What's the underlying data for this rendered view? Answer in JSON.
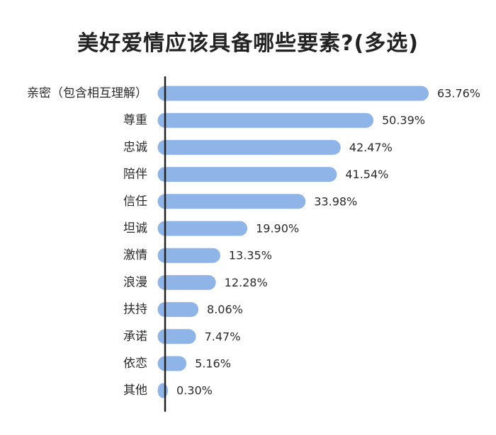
{
  "chart_data": {
    "type": "bar",
    "orientation": "horizontal",
    "title": "美好爱情应该具备哪些要素?(多选)",
    "categories": [
      "亲密（包含相互理解）",
      "尊重",
      "忠诚",
      "陪伴",
      "信任",
      "坦诚",
      "激情",
      "浪漫",
      "扶持",
      "承诺",
      "依恋",
      "其他"
    ],
    "values": [
      63.76,
      50.39,
      42.47,
      41.54,
      33.98,
      19.9,
      13.35,
      12.28,
      8.06,
      7.47,
      5.16,
      0.3
    ],
    "value_labels": [
      "63.76%",
      "50.39%",
      "42.47%",
      "41.54%",
      "33.98%",
      "19.90%",
      "13.35%",
      "12.28%",
      "8.06%",
      "7.47%",
      "5.16%",
      "0.30%"
    ],
    "unit": "%",
    "xlim": [
      0,
      63.76
    ],
    "grid": false,
    "legend": "none",
    "bar_color": "#8fb4e8",
    "axis_color": "#222222"
  }
}
